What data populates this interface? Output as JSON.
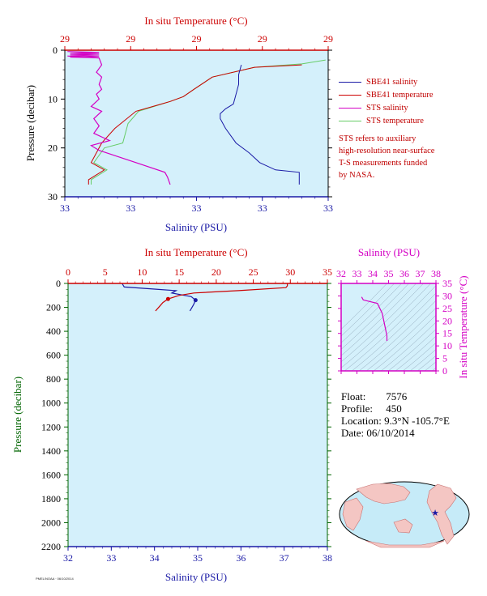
{
  "colors": {
    "salinity": "#1a1aa6",
    "temperature": "#cc0000",
    "sts_salinity": "#d400c4",
    "sts_temperature": "#66cc66",
    "plot_bg": "#d4f0fb",
    "ts_axis": "#d400c4",
    "pressure_label": "#006400"
  },
  "legend": {
    "items": [
      {
        "label": "SBE41 salinity",
        "color": "#1a1aa6"
      },
      {
        "label": "SBE41 temperature",
        "color": "#cc0000"
      },
      {
        "label": "STS salinity",
        "color": "#d400c4"
      },
      {
        "label": "STS temperature",
        "color": "#66cc66"
      }
    ],
    "note": [
      "STS refers to auxiliary",
      "high-resolution near-surface",
      "T-S measurements funded",
      "by NASA."
    ]
  },
  "info": {
    "float_label": "Float:",
    "float_value": "7576",
    "profile_label": "Profile:",
    "profile_value": "450",
    "location_label": "Location:",
    "location_value": "9.3°N  -105.7°E",
    "date_label": "Date:",
    "date_value": "06/10/2014"
  },
  "footer_code": "PMEL/NOAA · 06/10/2014",
  "chart_data": [
    {
      "type": "line",
      "title": "",
      "top_axis_label": "In situ Temperature (°C)",
      "top_ticks": [
        "29",
        "29",
        "29",
        "29",
        "29"
      ],
      "bottom_axis_label": "Salinity (PSU)",
      "bottom_ticks": [
        "33",
        "33",
        "33",
        "33",
        "33"
      ],
      "ylabel": "Pressure (decibar)",
      "y_ticks": [
        0,
        10,
        20,
        30
      ],
      "ylim": [
        0,
        30
      ],
      "x_fraction_range": [
        0,
        1
      ],
      "grid": false,
      "legend_position": "right",
      "series": [
        {
          "name": "SBE41 salinity",
          "axis": "salinity",
          "x": [
            0.67,
            0.66,
            0.66,
            0.65,
            0.64,
            0.61,
            0.59,
            0.59,
            0.61,
            0.65,
            0.7,
            0.74,
            0.8,
            0.89,
            0.89
          ],
          "pressure": [
            3,
            5,
            7,
            9,
            11,
            12,
            13,
            14,
            16,
            19,
            21,
            23,
            24.5,
            25,
            27.5
          ]
        },
        {
          "name": "SBE41 temperature",
          "axis": "temperature",
          "x": [
            0.9,
            0.72,
            0.56,
            0.49,
            0.45,
            0.4,
            0.27,
            0.19,
            0.14,
            0.1,
            0.15,
            0.09,
            0.09
          ],
          "pressure": [
            3,
            3.5,
            5.5,
            8,
            9.5,
            10.5,
            12.5,
            16,
            19,
            23,
            24.5,
            26.5,
            27.5
          ]
        },
        {
          "name": "STS salinity",
          "axis": "salinity",
          "x": [
            0.01,
            0.13,
            0.14,
            0.12,
            0.14,
            0.13,
            0.14,
            0.12,
            0.13,
            0.1,
            0.14,
            0.11,
            0.13,
            0.11,
            0.17,
            0.1,
            0.13,
            0.27,
            0.38,
            0.39,
            0.4
          ],
          "pressure": [
            1.2,
            1.6,
            3,
            4.5,
            5.5,
            7,
            8,
            9,
            10,
            11.5,
            12.5,
            14,
            15.5,
            17,
            18.5,
            19.5,
            20.5,
            23,
            25,
            26,
            27.5
          ]
        },
        {
          "name": "STS temperature",
          "axis": "temperature",
          "x": [
            0.99,
            0.9,
            0.72,
            0.56,
            0.49,
            0.45,
            0.4,
            0.28,
            0.24,
            0.22,
            0.15,
            0.11,
            0.16,
            0.1,
            0.1
          ],
          "pressure": [
            2,
            2.8,
            3.5,
            5.5,
            8,
            9.5,
            10.5,
            12.5,
            15,
            19,
            20,
            23,
            24.5,
            26.5,
            27.5
          ]
        }
      ]
    },
    {
      "type": "line",
      "title": "",
      "top_axis_label": "In situ Temperature (°C)",
      "top_ticks": [
        0,
        5,
        10,
        15,
        20,
        25,
        30,
        35
      ],
      "xlim_temperature": [
        0,
        35
      ],
      "bottom_axis_label": "Salinity (PSU)",
      "bottom_ticks": [
        32,
        33,
        34,
        35,
        36,
        37,
        38
      ],
      "xlim_salinity": [
        32,
        38
      ],
      "ylabel": "Pressure (decibar)",
      "y_ticks": [
        0,
        200,
        400,
        600,
        800,
        1000,
        1200,
        1400,
        1600,
        1800,
        2000,
        2200
      ],
      "ylim": [
        0,
        2200
      ],
      "grid": false,
      "series": [
        {
          "name": "SBE41 salinity",
          "axis": "salinity",
          "salinity": [
            33.25,
            33.3,
            33.9,
            34.5,
            34.4,
            34.85,
            34.95,
            34.9,
            34.82
          ],
          "pressure": [
            0,
            30,
            45,
            60,
            80,
            110,
            140,
            180,
            230
          ]
        },
        {
          "name": "SBE41 temperature",
          "axis": "temperature",
          "temperature": [
            29.6,
            29.6,
            29.4,
            23,
            17,
            15,
            13.5,
            12.8,
            12.3,
            11.8
          ],
          "pressure": [
            0,
            20,
            35,
            60,
            80,
            100,
            130,
            160,
            195,
            230
          ]
        }
      ]
    },
    {
      "type": "scatter",
      "title": "",
      "top_axis_label": "Salinity (PSU)",
      "top_ticks": [
        32,
        33,
        34,
        35,
        36,
        37,
        38
      ],
      "xlim": [
        32,
        38
      ],
      "ylabel": "In situ Temperature (°C)",
      "y_ticks": [
        0,
        5,
        10,
        15,
        20,
        25,
        30,
        35
      ],
      "ylim": [
        0,
        35
      ],
      "series": [
        {
          "name": "T-S",
          "salinity": [
            33.3,
            33.4,
            34.3,
            34.6,
            34.8,
            34.9,
            34.9
          ],
          "temperature": [
            29.6,
            28.4,
            27,
            23,
            17,
            14,
            12
          ]
        }
      ]
    }
  ]
}
